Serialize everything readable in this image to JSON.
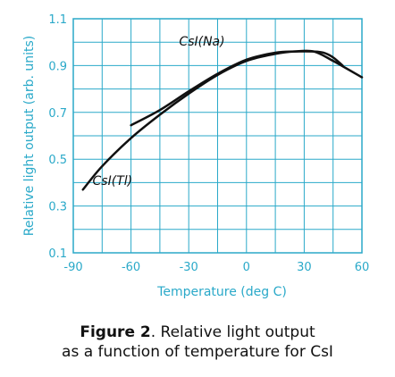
{
  "chart_data": {
    "type": "line",
    "xlabel": "Temperature (deg C)",
    "ylabel": "Relative light output (arb. units)",
    "xlim": [
      -90,
      60
    ],
    "ylim": [
      0.1,
      1.1
    ],
    "x_ticks": [
      "-90",
      "-60",
      "-30",
      "0",
      "30",
      "60"
    ],
    "y_ticks": [
      "0.1",
      "0.3",
      "0.5",
      "0.7",
      "0.9",
      "1.1"
    ],
    "grid": true,
    "colors": {
      "axis": "#2aa9c9",
      "grid": "#2aa9c9",
      "line": "#111111"
    },
    "series": [
      {
        "name": "CsI(Tl)",
        "x": [
          -85,
          -75,
          -60,
          -45,
          -30,
          -15,
          0,
          15,
          25,
          35,
          45,
          60
        ],
        "y": [
          0.37,
          0.47,
          0.59,
          0.69,
          0.78,
          0.86,
          0.92,
          0.95,
          0.96,
          0.96,
          0.92,
          0.85
        ]
      },
      {
        "name": "CsI(Na)",
        "x": [
          -60,
          -45,
          -30,
          -15,
          0,
          15,
          25,
          35,
          40,
          45,
          50
        ],
        "y": [
          0.645,
          0.71,
          0.79,
          0.865,
          0.925,
          0.955,
          0.96,
          0.96,
          0.955,
          0.935,
          0.9
        ]
      }
    ]
  },
  "caption": {
    "label": "Figure 2",
    "line1": ". Relative light output",
    "line2": "as a function of temperature for CsI"
  }
}
